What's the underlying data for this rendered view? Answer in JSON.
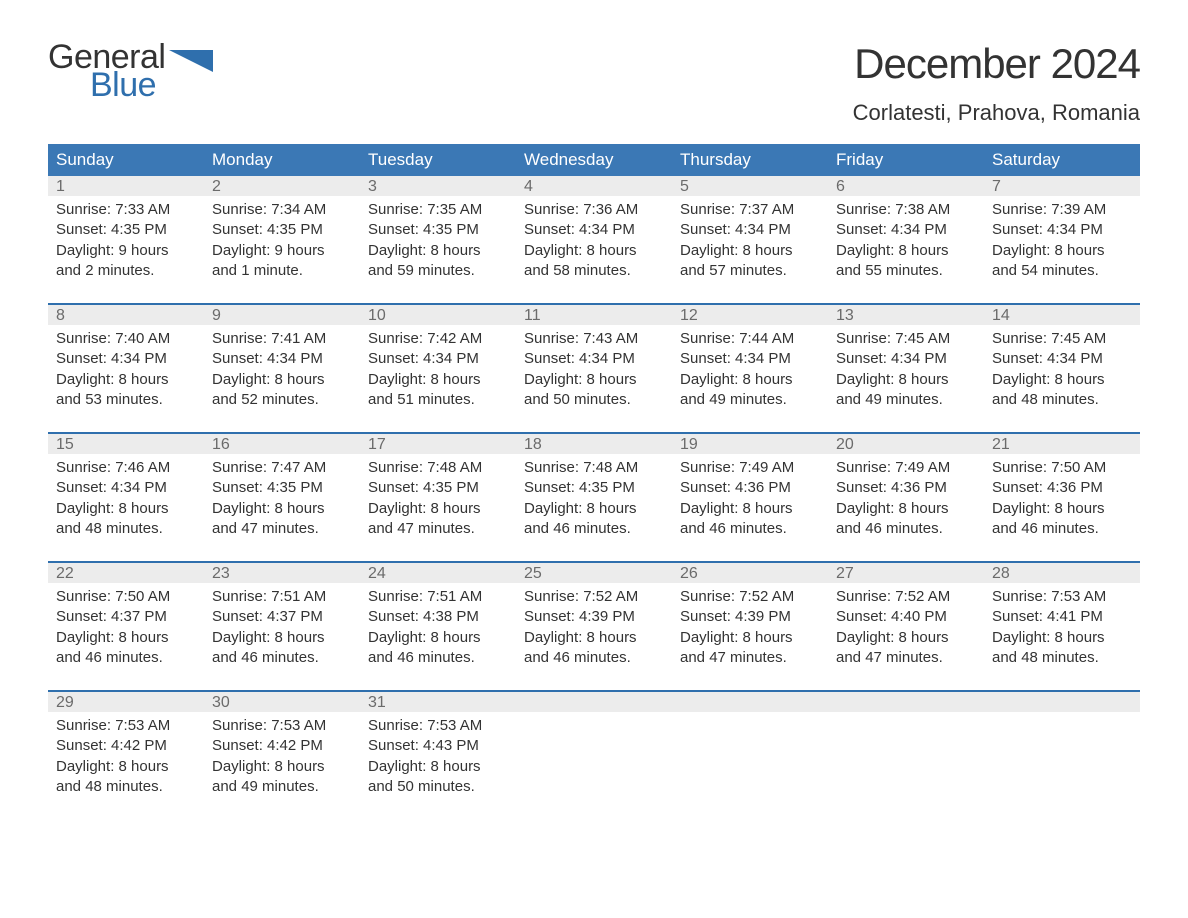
{
  "logo": {
    "text_top": "General",
    "text_bottom": "Blue",
    "flag_color": "#2f6fad"
  },
  "title": "December 2024",
  "location": "Corlatesti, Prahova, Romania",
  "colors": {
    "header_bg": "#3b78b5",
    "header_text": "#ffffff",
    "row_sep": "#2f6fad",
    "daynum_bg": "#ececec",
    "daynum_text": "#6b6b6b",
    "body_text": "#333333",
    "background": "#ffffff"
  },
  "typography": {
    "title_fontsize": 42,
    "location_fontsize": 22,
    "dayheader_fontsize": 17,
    "daynum_fontsize": 16,
    "detail_fontsize": 15
  },
  "day_headers": [
    "Sunday",
    "Monday",
    "Tuesday",
    "Wednesday",
    "Thursday",
    "Friday",
    "Saturday"
  ],
  "weeks": [
    [
      {
        "n": "1",
        "sunrise": "7:33 AM",
        "sunset": "4:35 PM",
        "daylight": "9 hours and 2 minutes."
      },
      {
        "n": "2",
        "sunrise": "7:34 AM",
        "sunset": "4:35 PM",
        "daylight": "9 hours and 1 minute."
      },
      {
        "n": "3",
        "sunrise": "7:35 AM",
        "sunset": "4:35 PM",
        "daylight": "8 hours and 59 minutes."
      },
      {
        "n": "4",
        "sunrise": "7:36 AM",
        "sunset": "4:34 PM",
        "daylight": "8 hours and 58 minutes."
      },
      {
        "n": "5",
        "sunrise": "7:37 AM",
        "sunset": "4:34 PM",
        "daylight": "8 hours and 57 minutes."
      },
      {
        "n": "6",
        "sunrise": "7:38 AM",
        "sunset": "4:34 PM",
        "daylight": "8 hours and 55 minutes."
      },
      {
        "n": "7",
        "sunrise": "7:39 AM",
        "sunset": "4:34 PM",
        "daylight": "8 hours and 54 minutes."
      }
    ],
    [
      {
        "n": "8",
        "sunrise": "7:40 AM",
        "sunset": "4:34 PM",
        "daylight": "8 hours and 53 minutes."
      },
      {
        "n": "9",
        "sunrise": "7:41 AM",
        "sunset": "4:34 PM",
        "daylight": "8 hours and 52 minutes."
      },
      {
        "n": "10",
        "sunrise": "7:42 AM",
        "sunset": "4:34 PM",
        "daylight": "8 hours and 51 minutes."
      },
      {
        "n": "11",
        "sunrise": "7:43 AM",
        "sunset": "4:34 PM",
        "daylight": "8 hours and 50 minutes."
      },
      {
        "n": "12",
        "sunrise": "7:44 AM",
        "sunset": "4:34 PM",
        "daylight": "8 hours and 49 minutes."
      },
      {
        "n": "13",
        "sunrise": "7:45 AM",
        "sunset": "4:34 PM",
        "daylight": "8 hours and 49 minutes."
      },
      {
        "n": "14",
        "sunrise": "7:45 AM",
        "sunset": "4:34 PM",
        "daylight": "8 hours and 48 minutes."
      }
    ],
    [
      {
        "n": "15",
        "sunrise": "7:46 AM",
        "sunset": "4:34 PM",
        "daylight": "8 hours and 48 minutes."
      },
      {
        "n": "16",
        "sunrise": "7:47 AM",
        "sunset": "4:35 PM",
        "daylight": "8 hours and 47 minutes."
      },
      {
        "n": "17",
        "sunrise": "7:48 AM",
        "sunset": "4:35 PM",
        "daylight": "8 hours and 47 minutes."
      },
      {
        "n": "18",
        "sunrise": "7:48 AM",
        "sunset": "4:35 PM",
        "daylight": "8 hours and 46 minutes."
      },
      {
        "n": "19",
        "sunrise": "7:49 AM",
        "sunset": "4:36 PM",
        "daylight": "8 hours and 46 minutes."
      },
      {
        "n": "20",
        "sunrise": "7:49 AM",
        "sunset": "4:36 PM",
        "daylight": "8 hours and 46 minutes."
      },
      {
        "n": "21",
        "sunrise": "7:50 AM",
        "sunset": "4:36 PM",
        "daylight": "8 hours and 46 minutes."
      }
    ],
    [
      {
        "n": "22",
        "sunrise": "7:50 AM",
        "sunset": "4:37 PM",
        "daylight": "8 hours and 46 minutes."
      },
      {
        "n": "23",
        "sunrise": "7:51 AM",
        "sunset": "4:37 PM",
        "daylight": "8 hours and 46 minutes."
      },
      {
        "n": "24",
        "sunrise": "7:51 AM",
        "sunset": "4:38 PM",
        "daylight": "8 hours and 46 minutes."
      },
      {
        "n": "25",
        "sunrise": "7:52 AM",
        "sunset": "4:39 PM",
        "daylight": "8 hours and 46 minutes."
      },
      {
        "n": "26",
        "sunrise": "7:52 AM",
        "sunset": "4:39 PM",
        "daylight": "8 hours and 47 minutes."
      },
      {
        "n": "27",
        "sunrise": "7:52 AM",
        "sunset": "4:40 PM",
        "daylight": "8 hours and 47 minutes."
      },
      {
        "n": "28",
        "sunrise": "7:53 AM",
        "sunset": "4:41 PM",
        "daylight": "8 hours and 48 minutes."
      }
    ],
    [
      {
        "n": "29",
        "sunrise": "7:53 AM",
        "sunset": "4:42 PM",
        "daylight": "8 hours and 48 minutes."
      },
      {
        "n": "30",
        "sunrise": "7:53 AM",
        "sunset": "4:42 PM",
        "daylight": "8 hours and 49 minutes."
      },
      {
        "n": "31",
        "sunrise": "7:53 AM",
        "sunset": "4:43 PM",
        "daylight": "8 hours and 50 minutes."
      },
      null,
      null,
      null,
      null
    ]
  ],
  "labels": {
    "sunrise": "Sunrise:",
    "sunset": "Sunset:",
    "daylight": "Daylight:"
  }
}
